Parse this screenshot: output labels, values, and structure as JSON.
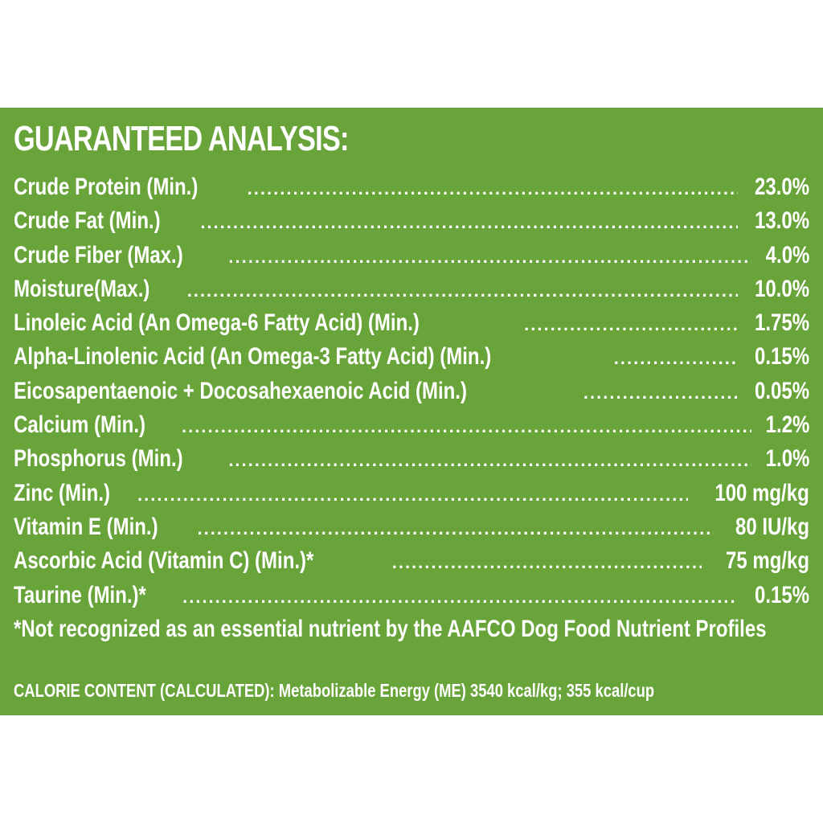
{
  "panel": {
    "title": "GUARANTEED ANALYSIS:",
    "rows": [
      {
        "label": "Crude Protein (Min.)",
        "value": "23.0%"
      },
      {
        "label": "Crude Fat (Min.)",
        "value": "13.0%"
      },
      {
        "label": "Crude Fiber (Max.)",
        "value": "4.0%"
      },
      {
        "label": "Moisture(Max.)",
        "value": "10.0%"
      },
      {
        "label": "Linoleic Acid (An Omega-6 Fatty Acid) (Min.)",
        "value": "1.75%"
      },
      {
        "label": "Alpha-Linolenic Acid (An Omega-3 Fatty Acid) (Min.)",
        "value": "0.15%"
      },
      {
        "label": "Eicosapentaenoic + Docosahexaenoic Acid (Min.)",
        "value": "0.05%"
      },
      {
        "label": "Calcium (Min.)",
        "value": "1.2%"
      },
      {
        "label": "Phosphorus (Min.)",
        "value": "1.0%"
      },
      {
        "label": "Zinc (Min.)",
        "value": "100 mg/kg"
      },
      {
        "label": "Vitamin E (Min.)",
        "value": "80 IU/kg"
      },
      {
        "label": "Ascorbic Acid (Vitamin C) (Min.)*",
        "value": "75 mg/kg"
      },
      {
        "label": "Taurine (Min.)*",
        "value": "0.15%"
      }
    ],
    "footnote": "*Not recognized as an essential nutrient by the AAFCO Dog Food Nutrient Profiles",
    "calorie": "CALORIE CONTENT (CALCULATED): Metabolizable Energy (ME) 3540 kcal/kg; 355 kcal/cup"
  },
  "colors": {
    "panel_background": "#68a43a",
    "text": "#ffffff",
    "page_background": "#ffffff"
  }
}
